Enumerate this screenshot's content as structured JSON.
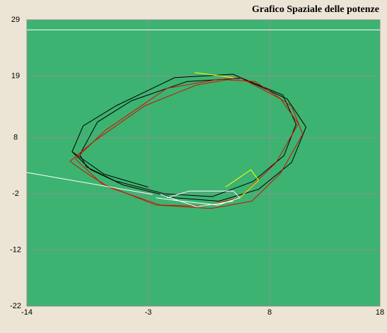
{
  "chart_data": {
    "type": "line",
    "title": "Grafico Spaziale delle potenze",
    "xlim": [
      -14,
      18
    ],
    "ylim": [
      -22,
      29
    ],
    "xticks": [
      -14,
      -3,
      8,
      18
    ],
    "yticks": [
      -22,
      -12,
      -2,
      8,
      19,
      29
    ],
    "grid": true,
    "background": "#3cb371",
    "grid_color": "#8f8f8f",
    "series": [
      {
        "color": "#000000",
        "x": [
          -3.0,
          -7.0,
          -9.9,
          -8.9,
          -5.9,
          -0.6,
          4.7,
          9.6,
          11.3,
          10.0,
          7.0,
          3.4,
          -0.6,
          -5.3,
          -8.2,
          -9.9
        ],
        "values": [
          -0.8,
          1.5,
          5.5,
          10.1,
          13.7,
          18.7,
          19.3,
          14.9,
          9.9,
          3.6,
          -1.2,
          -3.3,
          -2.7,
          -0.4,
          2.3,
          5.5
        ]
      },
      {
        "color": "#000000",
        "x": [
          -9.2,
          -7.6,
          -4.5,
          0.5,
          5.5,
          9.2,
          10.4,
          9.3,
          6.5,
          2.8,
          -1.5,
          -6.0,
          -8.6,
          -9.2
        ],
        "values": [
          5.0,
          10.8,
          14.6,
          18.0,
          18.6,
          15.6,
          10.4,
          4.8,
          0.2,
          -2.5,
          -2.0,
          0.3,
          2.8,
          5.0
        ]
      },
      {
        "color": "#cc1100",
        "x": [
          -10.1,
          -7.9,
          -3.3,
          1.4,
          5.3,
          9.0,
          10.6,
          8.6,
          5.3,
          2.0,
          -1.9,
          -6.6,
          -8.6,
          -10.1
        ],
        "values": [
          3.8,
          7.4,
          13.7,
          17.4,
          18.7,
          14.9,
          10.5,
          3.6,
          -2.7,
          -4.2,
          -4.0,
          -0.8,
          1.7,
          3.8
        ]
      },
      {
        "color": "#cc1100",
        "x": [
          -9.6,
          -6.9,
          -1.3,
          3.4,
          6.7,
          10.0,
          11.0,
          9.0,
          6.4,
          2.7,
          -2.3,
          -7.2,
          -9.6
        ],
        "values": [
          4.2,
          9.3,
          16.8,
          18.4,
          18.0,
          13.6,
          8.6,
          1.7,
          -3.3,
          -4.6,
          -4.0,
          -0.2,
          4.2
        ]
      },
      {
        "color": "#ffff00",
        "x": [
          1.2,
          4.7,
          null,
          4.0,
          6.3,
          7.0,
          5.3,
          3.3
        ],
        "values": [
          19.6,
          18.7,
          null,
          -0.8,
          2.3,
          0.4,
          -2.7,
          -4.0
        ]
      },
      {
        "color": "#ffffff",
        "x": [
          -14,
          -2.6,
          null,
          -2.3,
          0,
          3.3,
          5.3,
          4.7,
          0.7,
          -1.3,
          null,
          -1.9,
          1.4,
          4.7
        ],
        "values": [
          1.8,
          -2.1,
          null,
          -2.7,
          -3.3,
          -4.0,
          -2.7,
          -1.5,
          -1.5,
          -2.7,
          null,
          -2.1,
          -4.3,
          -3.3
        ]
      },
      {
        "color": "#ffffff",
        "x": [
          -14,
          18
        ],
        "values": [
          27.2,
          27.2
        ]
      }
    ]
  }
}
